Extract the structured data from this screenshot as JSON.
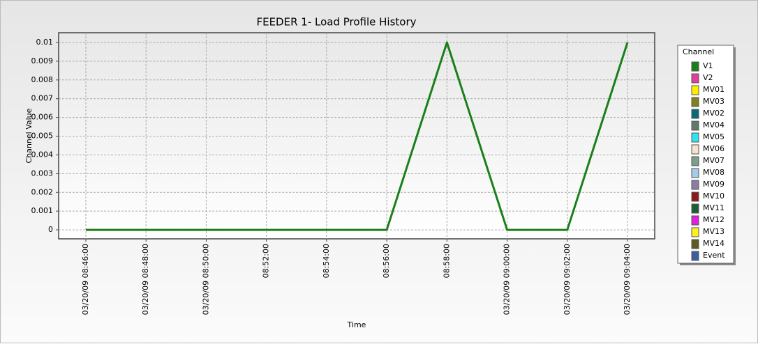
{
  "chart_data": {
    "type": "line",
    "title": "FEEDER 1- Load Profile History",
    "x_label": "Time",
    "y_label": "Channel Value",
    "categories": [
      "03/20/09 08:46:00",
      "03/20/09 08:48:00",
      "03/20/09 08:50:00",
      "08:52:00",
      "08:54:00",
      "08:56:00",
      "08:58:00",
      "03/20/09 09:00:00",
      "03/20/09 09:02:00",
      "03/20/09 09:04:00"
    ],
    "series": [
      {
        "name": "V1",
        "color": "#1a7f1a",
        "values": [
          0,
          0,
          0,
          0,
          0,
          0,
          0.01,
          0,
          0,
          0.01
        ]
      }
    ],
    "ylim": [
      -0.00048,
      0.01052
    ],
    "yticks": [
      0,
      0.001,
      0.002,
      0.003,
      0.004,
      0.005,
      0.006,
      0.007,
      0.008,
      0.009,
      0.01
    ],
    "grid": true,
    "legend": {
      "title": "Channel",
      "position": "right",
      "entries": [
        {
          "label": "V2",
          "color": "#e0409a"
        },
        {
          "label": "MV01",
          "color": "#ffee00"
        },
        {
          "label": "MV03",
          "color": "#808020"
        },
        {
          "label": "MV02",
          "color": "#0a6b78"
        },
        {
          "label": "MV04",
          "color": "#5f7a6c"
        },
        {
          "label": "MV05",
          "color": "#33e0f0"
        },
        {
          "label": "MV06",
          "color": "#f3e4cf"
        },
        {
          "label": "MV07",
          "color": "#7d9e8e"
        },
        {
          "label": "MV08",
          "color": "#a4cbe8"
        },
        {
          "label": "MV09",
          "color": "#8c7ca6"
        },
        {
          "label": "MV10",
          "color": "#8b1a1a"
        },
        {
          "label": "MV11",
          "color": "#1d5c38"
        },
        {
          "label": "MV12",
          "color": "#e020e0"
        },
        {
          "label": "MV13",
          "color": "#fff020"
        },
        {
          "label": "MV14",
          "color": "#5c5c22"
        },
        {
          "label": "Event",
          "color": "#3d5e9c"
        }
      ]
    }
  }
}
